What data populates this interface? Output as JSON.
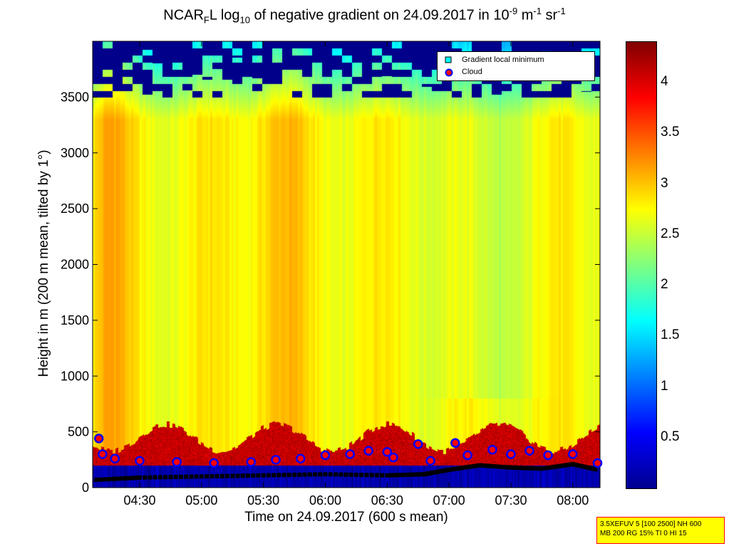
{
  "chart_data": {
    "type": "heatmap",
    "title_parts": {
      "pre": "NCAR",
      "sub1": "F",
      "mid": "L log",
      "sub2": "10",
      "mid2": " of negative gradient on 24.09.2017 in 10",
      "sup1": "-9",
      "mid3": " m",
      "sup2": "-1",
      "mid4": " sr",
      "sup3": "-1"
    },
    "xlabel": "Time on 24.09.2017 (600 s mean)",
    "ylabel": "Height in m (200 m mean, tilted by 1°)",
    "x_tick_labels": [
      "04:30",
      "05:00",
      "05:30",
      "06:00",
      "06:30",
      "07:00",
      "07:30",
      "08:00"
    ],
    "x_ticks_hours": [
      4.5,
      5.0,
      5.5,
      6.0,
      6.5,
      7.0,
      7.5,
      8.0
    ],
    "xlim_hours": [
      4.12,
      8.22
    ],
    "y_ticks": [
      0,
      500,
      1000,
      1500,
      2000,
      2500,
      3000,
      3500
    ],
    "ylim": [
      0,
      4000
    ],
    "colorbar": {
      "ticks": [
        0.5,
        1,
        1.5,
        2,
        2.5,
        3,
        3.5,
        4
      ],
      "tick_labels": [
        "0.5",
        "1",
        "1.5",
        "2",
        "2.5",
        "3",
        "3.5",
        "4"
      ],
      "range": [
        0,
        4.4
      ],
      "colormap": "jet"
    },
    "legend": {
      "placement": "top-right",
      "entries": [
        {
          "label": "Gradient local minimum",
          "marker": "square",
          "color": "#00ffff"
        },
        {
          "label": "Cloud",
          "marker": "circle",
          "color": "#ff0000",
          "edge": "#0000ff"
        }
      ]
    },
    "gradient_minimum_height": {
      "x_hours": [
        4.15,
        4.5,
        5.0,
        5.5,
        6.0,
        6.5,
        6.8,
        7.0,
        7.25,
        7.5,
        7.75,
        8.0,
        8.2
      ],
      "y": [
        70,
        90,
        100,
        110,
        120,
        110,
        120,
        160,
        200,
        180,
        170,
        210,
        160
      ]
    },
    "cloud_points": {
      "x_hours": [
        4.17,
        4.2,
        4.3,
        4.5,
        4.8,
        5.1,
        5.4,
        5.6,
        5.8,
        6.0,
        6.2,
        6.35,
        6.5,
        6.55,
        6.75,
        6.85,
        7.05,
        7.15,
        7.35,
        7.5,
        7.65,
        7.8,
        8.0,
        8.2
      ],
      "y": [
        440,
        300,
        260,
        240,
        230,
        220,
        230,
        250,
        260,
        290,
        300,
        330,
        320,
        270,
        390,
        240,
        400,
        290,
        340,
        300,
        330,
        290,
        300,
        220
      ]
    }
  },
  "stamp": {
    "line1": "3.5XEFUV 5 [100 2500] NH 600",
    "line2": "MB 200 RG 15% TI 0 HI 15"
  }
}
